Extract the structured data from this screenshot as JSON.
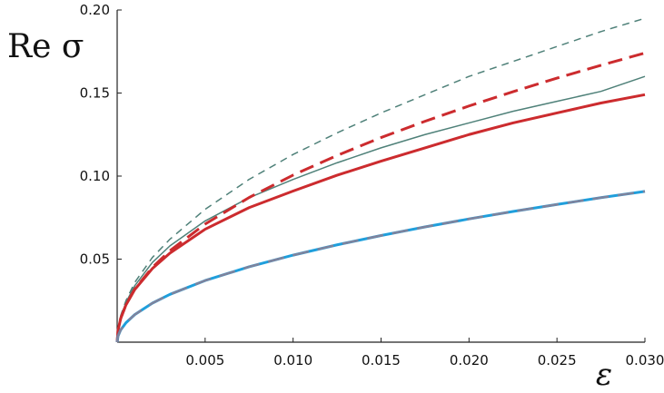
{
  "chart_data": {
    "type": "line",
    "xlabel": "ε",
    "ylabel": "Re σ",
    "xlim": [
      0,
      0.03
    ],
    "ylim": [
      0,
      0.2
    ],
    "x_ticks": [
      0.005,
      0.01,
      0.015,
      0.02,
      0.025,
      0.03
    ],
    "x_tick_labels": [
      "0.005",
      "0.010",
      "0.015",
      "0.020",
      "0.025",
      "0.030"
    ],
    "y_ticks": [
      0.05,
      0.1,
      0.15,
      0.2
    ],
    "y_tick_labels": [
      "0.05",
      "0.10",
      "0.15",
      "0.20"
    ],
    "grid": false,
    "x": [
      0,
      5e-05,
      0.0002,
      0.0005,
      0.001,
      0.002,
      0.003,
      0.005,
      0.0075,
      0.01,
      0.0125,
      0.015,
      0.0175,
      0.02,
      0.0225,
      0.025,
      0.0275,
      0.03
    ],
    "series": [
      {
        "color": "#4f8179",
        "line_style": "dashed-thin",
        "values": [
          0,
          0.008,
          0.016,
          0.025,
          0.036,
          0.051,
          0.062,
          0.08,
          0.098,
          0.113,
          0.126,
          0.138,
          0.149,
          0.16,
          0.169,
          0.178,
          0.187,
          0.195
        ]
      },
      {
        "color": "#4f8179",
        "line_style": "solid-thin",
        "values": [
          0,
          0.0075,
          0.015,
          0.024,
          0.034,
          0.048,
          0.058,
          0.073,
          0.087,
          0.098,
          0.108,
          0.117,
          0.125,
          0.132,
          0.139,
          0.145,
          0.151,
          0.16
        ]
      },
      {
        "color": "#cc2b2e",
        "line_style": "dashed-thick",
        "values": [
          0,
          0.0071,
          0.0143,
          0.0225,
          0.032,
          0.045,
          0.0551,
          0.0711,
          0.0871,
          0.1006,
          0.1124,
          0.1232,
          0.133,
          0.1422,
          0.1508,
          0.159,
          0.1667,
          0.1741
        ]
      },
      {
        "color": "#cc2b2e",
        "line_style": "solid-thick",
        "values": [
          0,
          0.0071,
          0.0142,
          0.0224,
          0.0317,
          0.0443,
          0.0536,
          0.068,
          0.081,
          0.091,
          0.1005,
          0.109,
          0.117,
          0.125,
          0.132,
          0.138,
          0.144,
          0.149
        ]
      },
      {
        "color": "#1f9fdc",
        "line_style": "solid-thick",
        "values": [
          0,
          0.0037,
          0.0074,
          0.0117,
          0.0166,
          0.0235,
          0.0288,
          0.0371,
          0.0454,
          0.0524,
          0.0586,
          0.0642,
          0.0694,
          0.0742,
          0.0787,
          0.0829,
          0.087,
          0.0908
        ]
      },
      {
        "color": "#8a7f96",
        "line_style": "dashed-medium",
        "values": [
          0,
          0.0037,
          0.0074,
          0.0117,
          0.0166,
          0.0235,
          0.0288,
          0.0371,
          0.0454,
          0.0524,
          0.0586,
          0.0642,
          0.0694,
          0.0742,
          0.0787,
          0.0829,
          0.087,
          0.0908
        ]
      }
    ]
  }
}
